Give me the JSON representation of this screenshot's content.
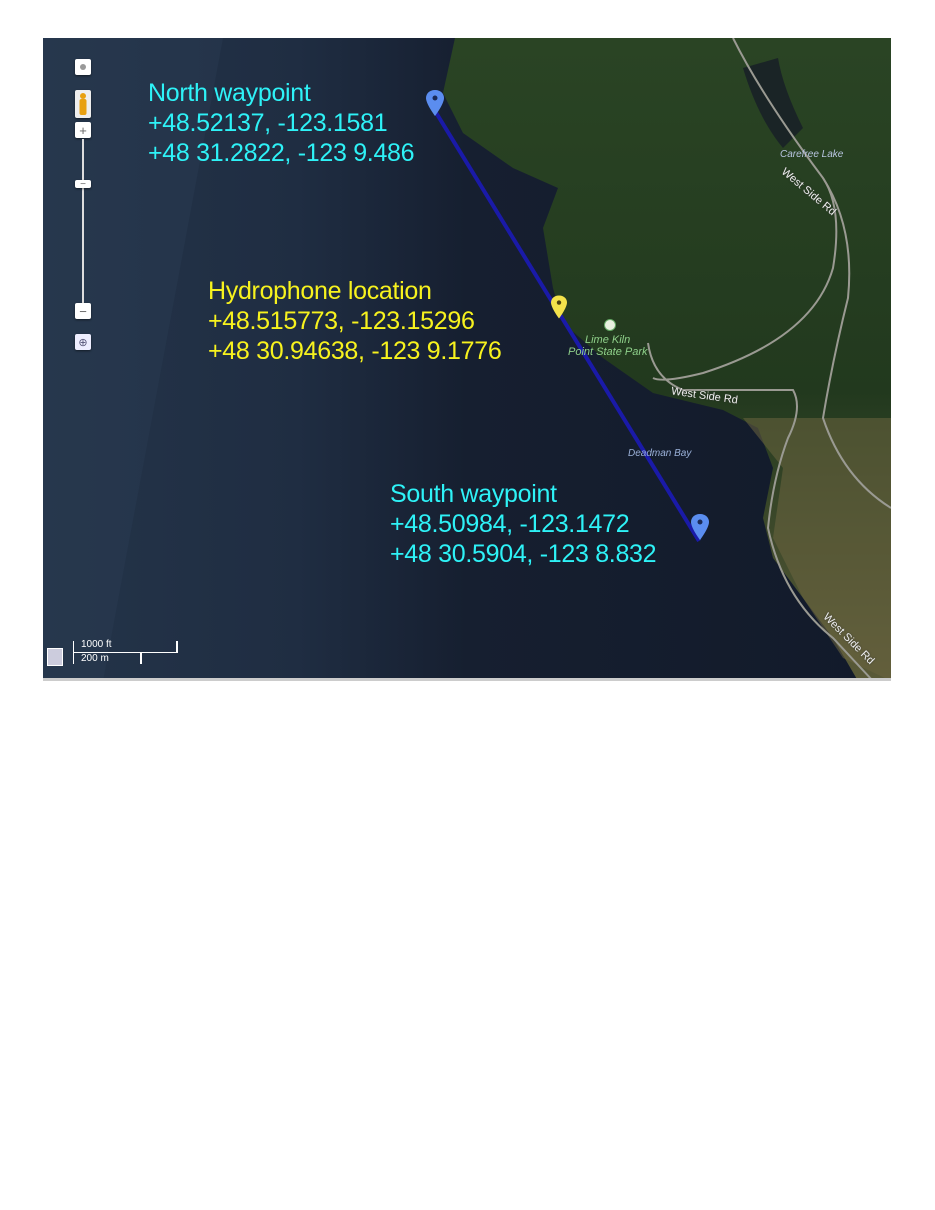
{
  "markers": {
    "north": {
      "title": "North waypoint",
      "decimal": "+48.52137, -123.1581",
      "dm": "+48 31.2822, -123 9.486",
      "color": "#2ef2f7",
      "pin_color": "#5b8def"
    },
    "hydrophone": {
      "title": "Hydrophone location",
      "decimal": "+48.515773, -123.15296",
      "dm": "+48 30.94638, -123 9.1776",
      "color": "#f7f21e",
      "pin_color": "#f3e24b"
    },
    "south": {
      "title": "South waypoint",
      "decimal": "+48.50984, -123.1472",
      "dm": "+48 30.5904, -123 8.832",
      "color": "#2ef2f7",
      "pin_color": "#5b8def"
    }
  },
  "track_color": "#1a1aa8",
  "places": {
    "carefree_lake": "Carefree Lake",
    "park_line1": "Lime Kiln",
    "park_line2": "Point State Park",
    "deadman_bay": "Deadman Bay",
    "road1": "West Side Rd",
    "road2": "West Side Rd",
    "road3": "West Side Rd"
  },
  "controls": {
    "zoom_in": "+",
    "zoom_out": "−",
    "pegman": "street-view-pegman-icon"
  },
  "scale": {
    "imperial": "1000 ft",
    "metric": "200 m"
  }
}
